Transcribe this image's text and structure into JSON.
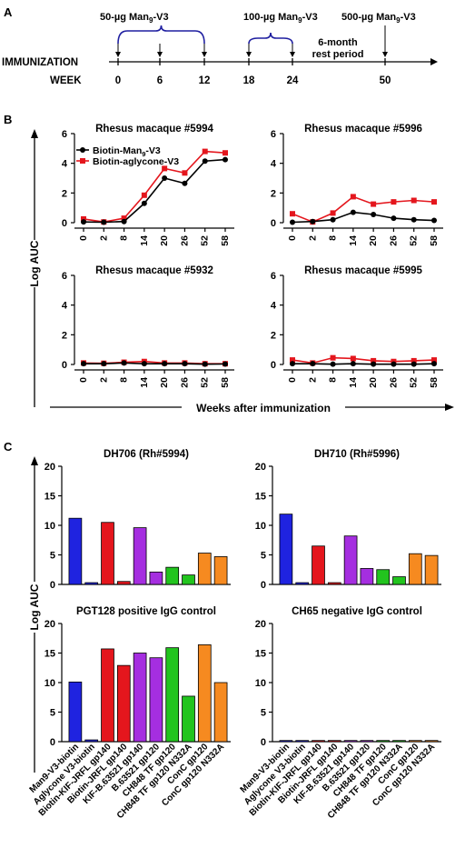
{
  "panels": {
    "a": {
      "letter": "A",
      "row_label": "IMMUNIZATION",
      "axis_label": "WEEK",
      "weeks": [
        "0",
        "6",
        "12",
        "18",
        "24",
        "50"
      ],
      "groups": [
        {
          "text": "50-µg Man",
          "sub": "9",
          "tail": "-V3",
          "weeks": [
            0,
            6,
            12
          ]
        },
        {
          "text": "100-µg Man",
          "sub": "9",
          "tail": "-V3",
          "weeks": [
            18,
            24
          ]
        },
        {
          "text": "500-µg Man",
          "sub": "9",
          "tail": "-V3",
          "weeks": [
            50
          ]
        }
      ],
      "rest_line1": "6-month",
      "rest_line2": "rest period",
      "colors": {
        "bracket": "#1f1fa0",
        "axis": "#000000"
      }
    },
    "b": {
      "letter": "B",
      "ylabel": "Log AUC",
      "xlabel": "Weeks after immunization"
    },
    "c": {
      "letter": "C",
      "ylabel": "Log AUC"
    }
  },
  "chart_data": [
    {
      "type": "line",
      "title": "Rhesus macaque #5994",
      "x": [
        "0",
        "2",
        "8",
        "14",
        "20",
        "26",
        "52",
        "58"
      ],
      "ylim": [
        0,
        6
      ],
      "yticks": [
        0,
        2,
        4,
        6
      ],
      "legend": "top-left",
      "series": [
        {
          "name": "Biotin-Man9-V3",
          "label_text": "Biotin-Man",
          "label_sub": "9",
          "label_tail": "-V3",
          "color": "#000000",
          "values": [
            0.05,
            0.03,
            0.08,
            1.3,
            3.0,
            2.65,
            4.15,
            4.25
          ]
        },
        {
          "name": "Biotin-aglycone-V3",
          "label_text": "Biotin-aglycone-V3",
          "color": "#e4161d",
          "values": [
            0.25,
            0.05,
            0.3,
            1.85,
            3.65,
            3.35,
            4.8,
            4.7
          ]
        }
      ]
    },
    {
      "type": "line",
      "title": "Rhesus macaque #5996",
      "x": [
        "0",
        "2",
        "8",
        "14",
        "20",
        "26",
        "52",
        "58"
      ],
      "ylim": [
        0,
        6
      ],
      "yticks": [
        0,
        2,
        4,
        6
      ],
      "series": [
        {
          "name": "Biotin-Man9-V3",
          "color": "#000000",
          "values": [
            0.03,
            0.08,
            0.2,
            0.7,
            0.55,
            0.3,
            0.2,
            0.15
          ]
        },
        {
          "name": "Biotin-aglycone-V3",
          "color": "#e4161d",
          "values": [
            0.6,
            0.05,
            0.65,
            1.75,
            1.25,
            1.4,
            1.5,
            1.4
          ]
        }
      ]
    },
    {
      "type": "line",
      "title": "Rhesus macaque #5932",
      "x": [
        "0",
        "2",
        "8",
        "14",
        "20",
        "26",
        "52",
        "58"
      ],
      "ylim": [
        0,
        6
      ],
      "yticks": [
        0,
        2,
        4,
        6
      ],
      "series": [
        {
          "name": "Biotin-Man9-V3",
          "color": "#000000",
          "values": [
            0.05,
            0.05,
            0.1,
            0.05,
            0.05,
            0.05,
            0.02,
            0.03
          ]
        },
        {
          "name": "Biotin-aglycone-V3",
          "color": "#e4161d",
          "values": [
            0.1,
            0.08,
            0.15,
            0.2,
            0.1,
            0.1,
            0.05,
            0.05
          ]
        }
      ]
    },
    {
      "type": "line",
      "title": "Rhesus macaque #5995",
      "x": [
        "0",
        "2",
        "8",
        "14",
        "20",
        "26",
        "52",
        "58"
      ],
      "ylim": [
        0,
        6
      ],
      "yticks": [
        0,
        2,
        4,
        6
      ],
      "series": [
        {
          "name": "Biotin-Man9-V3",
          "color": "#000000",
          "values": [
            0.05,
            0.05,
            0.02,
            0.05,
            0.02,
            0.02,
            0.02,
            0.05
          ]
        },
        {
          "name": "Biotin-aglycone-V3",
          "color": "#e4161d",
          "values": [
            0.3,
            0.1,
            0.45,
            0.4,
            0.25,
            0.2,
            0.25,
            0.3
          ]
        }
      ]
    },
    {
      "type": "bar",
      "title": "DH706 (Rh#5994)",
      "ylim": [
        0,
        20
      ],
      "yticks": [
        0,
        5,
        10,
        15,
        20
      ],
      "categories": [
        "Man9-V3-biotin",
        "Aglycone V3-biotin",
        "Biotin-KIF-JRFL gp140",
        "Biotin-JRFL gp140",
        "KIF-B.63521 gp140",
        "B.63521 gp120",
        "CH848 TF gp120",
        "CH848 TF gp120 N332A",
        "ConC gp120",
        "ConC gp120 N332A"
      ],
      "colors": [
        "#1f23e0",
        "#1f23e0",
        "#e4161d",
        "#e4161d",
        "#a52ee0",
        "#a52ee0",
        "#22c41e",
        "#22c41e",
        "#f68a20",
        "#f68a20"
      ],
      "values": [
        11.2,
        0.3,
        10.5,
        0.5,
        9.6,
        2.1,
        2.9,
        1.6,
        5.3,
        4.7
      ]
    },
    {
      "type": "bar",
      "title": "DH710 (Rh#5996)",
      "ylim": [
        0,
        20
      ],
      "yticks": [
        0,
        5,
        10,
        15,
        20
      ],
      "categories": [
        "Man9-V3-biotin",
        "Aglycone V3-biotin",
        "Biotin-KIF-JRFL gp140",
        "Biotin-JRFL gp140",
        "KIF-B.63521 gp140",
        "B.63521 gp120",
        "CH848 TF gp120",
        "CH848 TF gp120 N332A",
        "ConC gp120",
        "ConC gp120 N332A"
      ],
      "colors": [
        "#1f23e0",
        "#1f23e0",
        "#e4161d",
        "#e4161d",
        "#a52ee0",
        "#a52ee0",
        "#22c41e",
        "#22c41e",
        "#f68a20",
        "#f68a20"
      ],
      "values": [
        11.9,
        0.3,
        6.5,
        0.3,
        8.2,
        2.7,
        2.5,
        1.3,
        5.2,
        4.9
      ]
    },
    {
      "type": "bar",
      "title": "PGT128 positive IgG control",
      "ylim": [
        0,
        20
      ],
      "yticks": [
        0,
        5,
        10,
        15,
        20
      ],
      "categories": [
        "Man9-V3-biotin",
        "Aglycone V3-biotin",
        "Biotin-KIF-JRFL gp140",
        "Biotin-JRFL gp140",
        "KIF-B.63521 gp140",
        "B.63521 gp120",
        "CH848 TF gp120",
        "CH848 TF gp120 N332A",
        "ConC gp120",
        "ConC gp120 N332A"
      ],
      "colors": [
        "#1f23e0",
        "#1f23e0",
        "#e4161d",
        "#e4161d",
        "#a52ee0",
        "#a52ee0",
        "#22c41e",
        "#22c41e",
        "#f68a20",
        "#f68a20"
      ],
      "values": [
        10.1,
        0.3,
        15.7,
        12.9,
        15.0,
        14.2,
        15.9,
        7.7,
        16.4,
        10.0
      ]
    },
    {
      "type": "bar",
      "title": "CH65 negative IgG control",
      "ylim": [
        0,
        20
      ],
      "yticks": [
        0,
        5,
        10,
        15,
        20
      ],
      "categories": [
        "Man9-V3-biotin",
        "Aglycone V3-biotin",
        "Biotin-KIF-JRFL gp140",
        "Biotin-JRFL gp140",
        "KIF-B.63521 gp140",
        "B.63521 gp120",
        "CH848 TF gp120",
        "CH848 TF gp120 N332A",
        "ConC gp120",
        "ConC gp120 N332A"
      ],
      "colors": [
        "#1f23e0",
        "#1f23e0",
        "#e4161d",
        "#e4161d",
        "#a52ee0",
        "#a52ee0",
        "#22c41e",
        "#22c41e",
        "#f68a20",
        "#f68a20"
      ],
      "values": [
        0.2,
        0.2,
        0.2,
        0.2,
        0.2,
        0.2,
        0.2,
        0.2,
        0.2,
        0.2
      ]
    }
  ]
}
